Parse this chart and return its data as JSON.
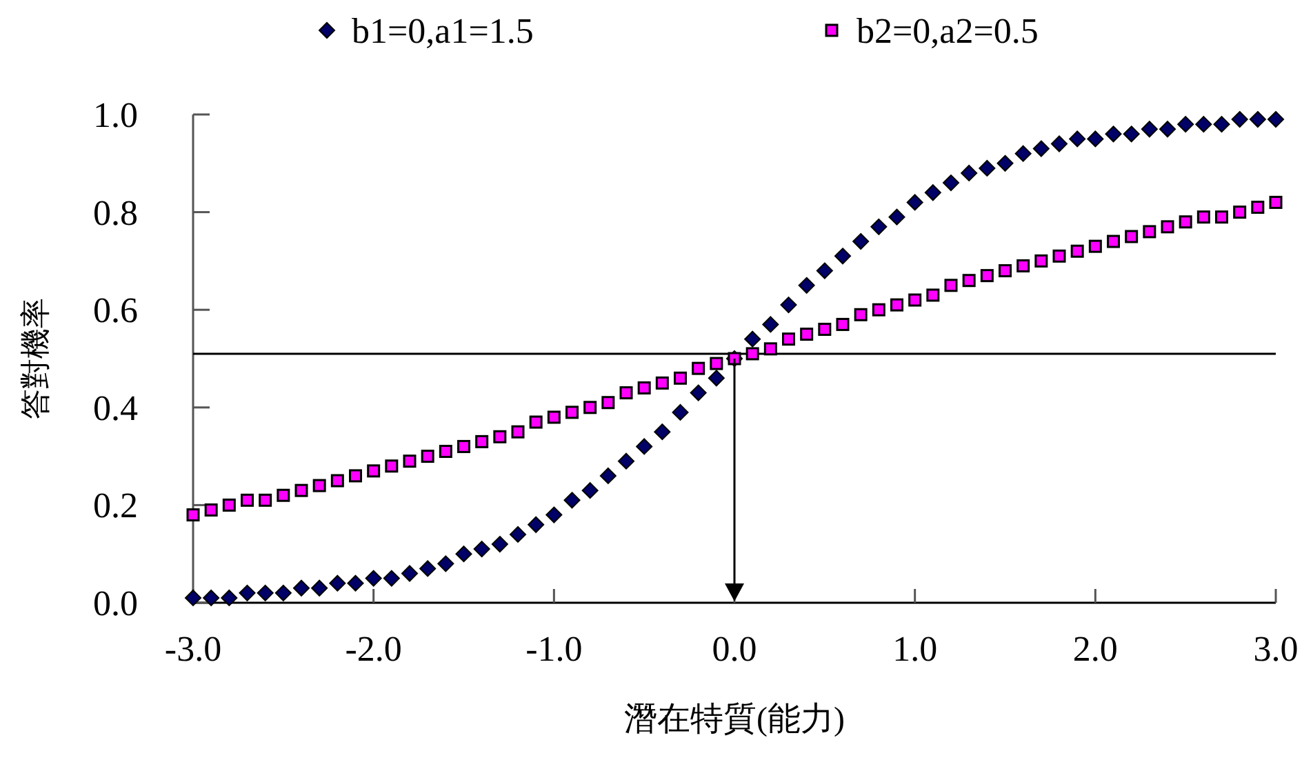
{
  "chart_data": {
    "type": "scatter",
    "xlabel": "潛在特質(能力)",
    "ylabel": "答對機率",
    "x": [
      -3.0,
      -2.9,
      -2.8,
      -2.7,
      -2.6,
      -2.5,
      -2.4,
      -2.3,
      -2.2,
      -2.1,
      -2.0,
      -1.9,
      -1.8,
      -1.7,
      -1.6,
      -1.5,
      -1.4,
      -1.3,
      -1.2,
      -1.1,
      -1.0,
      -0.9,
      -0.8,
      -0.7,
      -0.6,
      -0.5,
      -0.4,
      -0.3,
      -0.2,
      -0.1,
      0.0,
      0.1,
      0.2,
      0.3,
      0.4,
      0.5,
      0.6,
      0.7,
      0.8,
      0.9,
      1.0,
      1.1,
      1.2,
      1.3,
      1.4,
      1.5,
      1.6,
      1.7,
      1.8,
      1.9,
      2.0,
      2.1,
      2.2,
      2.3,
      2.4,
      2.5,
      2.6,
      2.7,
      2.8,
      2.9,
      3.0
    ],
    "series": [
      {
        "name": "b1=0,a1=1.5",
        "color": "#000066",
        "marker": "diamond",
        "values": [
          0.01,
          0.01,
          0.01,
          0.02,
          0.02,
          0.02,
          0.03,
          0.03,
          0.04,
          0.04,
          0.05,
          0.05,
          0.06,
          0.07,
          0.08,
          0.1,
          0.11,
          0.12,
          0.14,
          0.16,
          0.18,
          0.21,
          0.23,
          0.26,
          0.29,
          0.32,
          0.35,
          0.39,
          0.43,
          0.46,
          0.5,
          0.54,
          0.57,
          0.61,
          0.65,
          0.68,
          0.71,
          0.74,
          0.77,
          0.79,
          0.82,
          0.84,
          0.86,
          0.88,
          0.89,
          0.9,
          0.92,
          0.93,
          0.94,
          0.95,
          0.95,
          0.96,
          0.96,
          0.97,
          0.97,
          0.98,
          0.98,
          0.98,
          0.99,
          0.99,
          0.99
        ]
      },
      {
        "name": "b2=0,a2=0.5",
        "color": "#ff00ff",
        "marker": "square",
        "values": [
          0.18,
          0.19,
          0.2,
          0.21,
          0.21,
          0.22,
          0.23,
          0.24,
          0.25,
          0.26,
          0.27,
          0.28,
          0.29,
          0.3,
          0.31,
          0.32,
          0.33,
          0.34,
          0.35,
          0.37,
          0.38,
          0.39,
          0.4,
          0.41,
          0.43,
          0.44,
          0.45,
          0.46,
          0.48,
          0.49,
          0.5,
          0.51,
          0.52,
          0.54,
          0.55,
          0.56,
          0.57,
          0.59,
          0.6,
          0.61,
          0.62,
          0.63,
          0.65,
          0.66,
          0.67,
          0.68,
          0.69,
          0.7,
          0.71,
          0.72,
          0.73,
          0.74,
          0.75,
          0.76,
          0.77,
          0.78,
          0.79,
          0.79,
          0.8,
          0.81,
          0.82
        ]
      }
    ],
    "ref_lines": [
      {
        "axis": "y",
        "value": 0.51,
        "color": "#000000"
      }
    ],
    "xlim": [
      -3,
      3
    ],
    "ylim": [
      0,
      1
    ],
    "xticks": [
      {
        "value": -3,
        "label": "-3.0"
      },
      {
        "value": -2,
        "label": "-2.0"
      },
      {
        "value": -1,
        "label": "-1.0"
      },
      {
        "value": 0,
        "label": "0.0"
      },
      {
        "value": 1,
        "label": "1.0"
      },
      {
        "value": 2,
        "label": "2.0"
      },
      {
        "value": 3,
        "label": "3.0"
      }
    ],
    "yticks": [
      {
        "value": 0,
        "label": "0.0"
      },
      {
        "value": 0.2,
        "label": "0.2"
      },
      {
        "value": 0.4,
        "label": "0.4"
      },
      {
        "value": 0.6,
        "label": "0.6"
      },
      {
        "value": 0.8,
        "label": "0.8"
      },
      {
        "value": 1,
        "label": "1.0"
      }
    ],
    "legend": "top",
    "grid": false
  }
}
